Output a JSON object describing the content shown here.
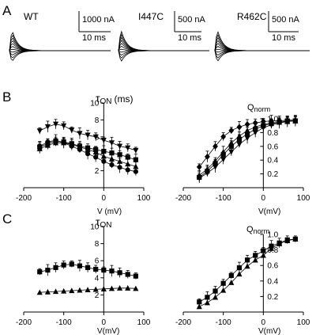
{
  "panel_labels": [
    "A",
    "B",
    "C"
  ],
  "traces": [
    {
      "label": "WT",
      "scale_current": "1000 nA",
      "scale_time": "10 ms"
    },
    {
      "label": "I447C",
      "scale_current": "500 nA",
      "scale_time": "10 ms"
    },
    {
      "label": "R462C",
      "scale_current": "500 nA",
      "scale_time": "10 ms"
    }
  ],
  "axis_text": {
    "tau_main": "τ",
    "tau_sub": "ON",
    "tau_unit": "(ms)",
    "q_main": "Q",
    "q_sub": "norm",
    "v_label_spaced": "V (mV)",
    "v_label": "V(mV)"
  },
  "chart_data": [
    {
      "panel": "B-left",
      "type": "scatter",
      "xlabel": "V (mV)",
      "ylabel": "τON (ms)",
      "xlim": [
        -200,
        100
      ],
      "ylim": [
        0,
        10
      ],
      "xticks": [
        -200,
        -100,
        0,
        100
      ],
      "yticks": [
        2,
        4,
        6,
        8,
        10
      ],
      "series": [
        {
          "marker": "triangle-down",
          "error_bars": true,
          "points": [
            [
              -160,
              6.7
            ],
            [
              -140,
              7.2
            ],
            [
              -120,
              7.5
            ],
            [
              -100,
              7.3
            ],
            [
              -80,
              6.8
            ],
            [
              -60,
              6.4
            ],
            [
              -40,
              6.2
            ],
            [
              -20,
              6.0
            ],
            [
              0,
              5.6
            ],
            [
              20,
              5.3
            ],
            [
              40,
              4.9
            ],
            [
              60,
              4.7
            ],
            [
              80,
              4.4
            ]
          ]
        },
        {
          "marker": "square",
          "error_bars": true,
          "points": [
            [
              -160,
              4.8
            ],
            [
              -140,
              5.2
            ],
            [
              -120,
              5.5
            ],
            [
              -100,
              5.4
            ],
            [
              -80,
              5.2
            ],
            [
              -60,
              4.9
            ],
            [
              -40,
              4.7
            ],
            [
              -20,
              4.5
            ],
            [
              0,
              4.3
            ],
            [
              20,
              4.1
            ],
            [
              40,
              3.9
            ],
            [
              60,
              3.6
            ],
            [
              80,
              3.3
            ]
          ]
        },
        {
          "marker": "triangle-up",
          "error_bars": true,
          "points": [
            [
              -160,
              4.6
            ],
            [
              -140,
              5.0
            ],
            [
              -120,
              5.3
            ],
            [
              -100,
              5.3
            ],
            [
              -80,
              5.1
            ],
            [
              -60,
              4.8
            ],
            [
              -40,
              4.5
            ],
            [
              -20,
              4.2
            ],
            [
              0,
              3.7
            ],
            [
              20,
              3.4
            ],
            [
              40,
              3.1
            ],
            [
              60,
              2.8
            ],
            [
              80,
              2.5
            ]
          ]
        },
        {
          "marker": "circle",
          "error_bars": true,
          "points": [
            [
              -160,
              4.9
            ],
            [
              -140,
              5.4
            ],
            [
              -120,
              5.6
            ],
            [
              -100,
              5.3
            ],
            [
              -80,
              4.9
            ],
            [
              -60,
              4.5
            ],
            [
              -40,
              4.0
            ],
            [
              -20,
              3.6
            ],
            [
              0,
              3.1
            ],
            [
              20,
              2.7
            ],
            [
              40,
              2.4
            ],
            [
              60,
              2.1
            ],
            [
              80,
              1.9
            ]
          ]
        }
      ]
    },
    {
      "panel": "B-right",
      "type": "scatter",
      "xlabel": "V(mV)",
      "ylabel": "Qnorm",
      "xlim": [
        -200,
        100
      ],
      "ylim": [
        0,
        1.0
      ],
      "xticks": [
        -200,
        -100,
        0,
        100
      ],
      "yticks": [
        0.2,
        0.4,
        0.6,
        0.8,
        1.0
      ],
      "series": [
        {
          "marker": "diamond",
          "error_bars": true,
          "points": [
            [
              -160,
              0.3
            ],
            [
              -140,
              0.45
            ],
            [
              -120,
              0.6
            ],
            [
              -100,
              0.74
            ],
            [
              -80,
              0.83
            ],
            [
              -60,
              0.88
            ],
            [
              -40,
              0.92
            ],
            [
              -20,
              0.94
            ],
            [
              0,
              0.96
            ],
            [
              20,
              0.97
            ],
            [
              40,
              0.97
            ],
            [
              60,
              0.98
            ],
            [
              80,
              0.98
            ]
          ]
        },
        {
          "marker": "square",
          "error_bars": true,
          "points": [
            [
              -160,
              0.15
            ],
            [
              -140,
              0.24
            ],
            [
              -120,
              0.35
            ],
            [
              -100,
              0.48
            ],
            [
              -80,
              0.6
            ],
            [
              -60,
              0.7
            ],
            [
              -40,
              0.78
            ],
            [
              -20,
              0.85
            ],
            [
              0,
              0.9
            ],
            [
              20,
              0.93
            ],
            [
              40,
              0.95
            ],
            [
              60,
              0.97
            ],
            [
              80,
              0.97
            ]
          ]
        },
        {
          "marker": "triangle-up",
          "error_bars": true,
          "points": [
            [
              -160,
              0.18
            ],
            [
              -140,
              0.27
            ],
            [
              -120,
              0.39
            ],
            [
              -100,
              0.52
            ],
            [
              -80,
              0.65
            ],
            [
              -60,
              0.75
            ],
            [
              -40,
              0.83
            ],
            [
              -20,
              0.88
            ],
            [
              0,
              0.92
            ],
            [
              20,
              0.94
            ],
            [
              40,
              0.95
            ],
            [
              60,
              0.96
            ],
            [
              80,
              0.97
            ]
          ]
        },
        {
          "marker": "triangle-down",
          "error_bars": true,
          "points": [
            [
              -160,
              0.14
            ],
            [
              -140,
              0.21
            ],
            [
              -120,
              0.3
            ],
            [
              -100,
              0.41
            ],
            [
              -80,
              0.52
            ],
            [
              -60,
              0.63
            ],
            [
              -40,
              0.72
            ],
            [
              -20,
              0.8
            ],
            [
              0,
              0.87
            ],
            [
              20,
              0.91
            ],
            [
              40,
              0.94
            ],
            [
              60,
              0.96
            ],
            [
              80,
              0.97
            ]
          ]
        }
      ]
    },
    {
      "panel": "C-left",
      "type": "scatter",
      "xlabel": "V(mV)",
      "ylabel": "τON (ms)",
      "xlim": [
        -200,
        100
      ],
      "ylim": [
        0,
        10
      ],
      "xticks": [
        -200,
        -100,
        0,
        100
      ],
      "yticks": [
        2,
        4,
        6,
        8,
        10
      ],
      "series": [
        {
          "marker": "square",
          "error_bars": true,
          "points": [
            [
              -160,
              4.7
            ],
            [
              -140,
              4.9
            ],
            [
              -120,
              5.2
            ],
            [
              -100,
              5.5
            ],
            [
              -80,
              5.6
            ],
            [
              -60,
              5.4
            ],
            [
              -40,
              5.2
            ],
            [
              -20,
              5.0
            ],
            [
              0,
              4.9
            ],
            [
              20,
              4.8
            ],
            [
              40,
              4.6
            ],
            [
              60,
              4.4
            ],
            [
              80,
              4.2
            ]
          ]
        },
        {
          "marker": "triangle-up",
          "error_bars": false,
          "points": [
            [
              -160,
              2.3
            ],
            [
              -140,
              2.35
            ],
            [
              -120,
              2.4
            ],
            [
              -100,
              2.45
            ],
            [
              -80,
              2.5
            ],
            [
              -60,
              2.55
            ],
            [
              -40,
              2.6
            ],
            [
              -20,
              2.65
            ],
            [
              0,
              2.7
            ],
            [
              20,
              2.75
            ],
            [
              40,
              2.8
            ],
            [
              60,
              2.8
            ],
            [
              80,
              2.75
            ]
          ]
        }
      ]
    },
    {
      "panel": "C-right",
      "type": "scatter",
      "xlabel": "V(mV)",
      "ylabel": "Qnorm",
      "xlim": [
        -200,
        100
      ],
      "ylim": [
        0,
        1.0
      ],
      "xticks": [
        -200,
        -100,
        0,
        100
      ],
      "yticks": [
        0.2,
        0.4,
        0.6,
        0.8,
        1.0
      ],
      "series": [
        {
          "marker": "square",
          "error_bars": true,
          "points": [
            [
              -160,
              0.13
            ],
            [
              -140,
              0.19
            ],
            [
              -120,
              0.27
            ],
            [
              -100,
              0.37
            ],
            [
              -80,
              0.47
            ],
            [
              -60,
              0.57
            ],
            [
              -40,
              0.67
            ],
            [
              -20,
              0.73
            ],
            [
              0,
              0.79
            ],
            [
              20,
              0.85
            ],
            [
              40,
              0.89
            ],
            [
              60,
              0.93
            ],
            [
              80,
              0.94
            ]
          ]
        },
        {
          "marker": "triangle-up",
          "error_bars": false,
          "points": [
            [
              -160,
              0.07
            ],
            [
              -140,
              0.12
            ],
            [
              -120,
              0.19
            ],
            [
              -100,
              0.28
            ],
            [
              -80,
              0.38
            ],
            [
              -60,
              0.49
            ],
            [
              -40,
              0.59
            ],
            [
              -20,
              0.67
            ],
            [
              0,
              0.73
            ],
            [
              20,
              0.82
            ],
            [
              40,
              0.88
            ],
            [
              60,
              0.92
            ],
            [
              80,
              0.94
            ]
          ]
        }
      ]
    }
  ]
}
